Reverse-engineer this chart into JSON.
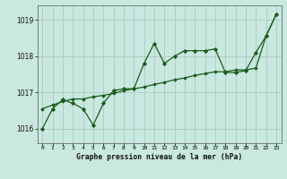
{
  "title": "Graphe pression niveau de la mer (hPa)",
  "background_color": "#c8e8e0",
  "plot_bg_color": "#c8e8e0",
  "grid_color": "#b0c8c0",
  "line_color": "#1a5c1a",
  "marker_color": "#1a5c1a",
  "x_labels": [
    "0",
    "1",
    "2",
    "3",
    "4",
    "5",
    "6",
    "7",
    "8",
    "9",
    "10",
    "11",
    "12",
    "13",
    "14",
    "15",
    "16",
    "17",
    "18",
    "19",
    "20",
    "21",
    "22",
    "23"
  ],
  "xlim": [
    -0.5,
    23.5
  ],
  "ylim": [
    1015.6,
    1019.4
  ],
  "yticks": [
    1016,
    1017,
    1018,
    1019
  ],
  "series1": [
    1016.0,
    1016.55,
    1016.8,
    1016.7,
    1016.55,
    1016.1,
    1016.7,
    1017.05,
    1017.1,
    1017.1,
    1017.8,
    1018.35,
    1017.8,
    1018.0,
    1018.15,
    1018.15,
    1018.15,
    1018.2,
    1017.55,
    1017.55,
    1017.6,
    1018.1,
    1018.55,
    1019.15
  ],
  "series2": [
    1016.55,
    1016.65,
    1016.75,
    1016.82,
    1016.82,
    1016.88,
    1016.92,
    1016.97,
    1017.05,
    1017.1,
    1017.15,
    1017.22,
    1017.28,
    1017.35,
    1017.4,
    1017.47,
    1017.52,
    1017.57,
    1017.57,
    1017.62,
    1017.62,
    1017.67,
    1018.55,
    1019.15
  ]
}
